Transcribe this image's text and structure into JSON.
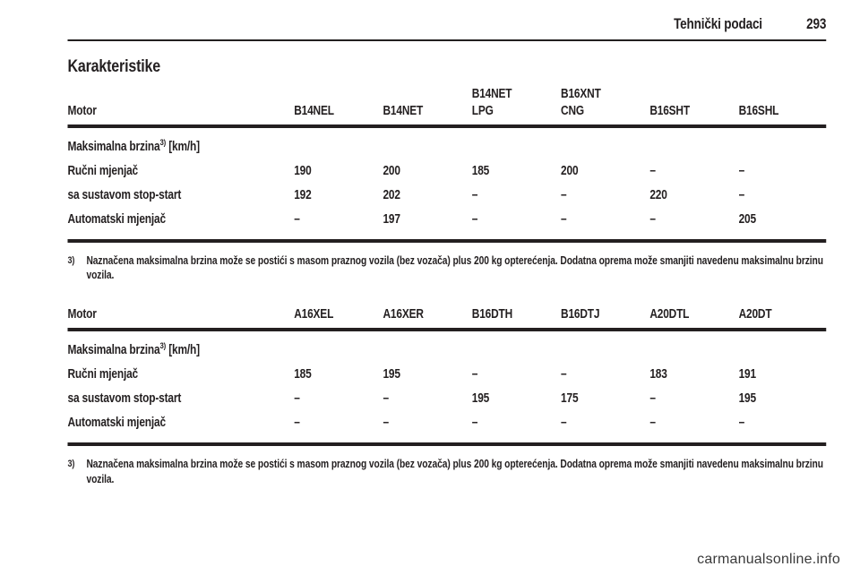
{
  "header": {
    "title": "Tehnički podaci",
    "page_number": "293"
  },
  "title": "Karakteristike",
  "footnote": {
    "marker": "3)",
    "text": "Naznačena maksimalna brzina može se postići s masom praznog vozila (bez vozača) plus 200 kg opterećenja. Dodatna oprema može smanjiti navedenu maksimalnu brzinu vozila."
  },
  "table1": {
    "motor_label": "Motor",
    "columns": [
      "B14NEL",
      "B14NET",
      "B14NET\nLPG",
      "B16XNT\nCNG",
      "B16SHT",
      "B16SHL"
    ],
    "section": {
      "label": "Maksimalna brzina",
      "sup": "3)",
      "unit": " [km/h]"
    },
    "rows": [
      {
        "label": "Ručni mjenjač",
        "values": [
          "190",
          "200",
          "185",
          "200",
          "–",
          "–"
        ]
      },
      {
        "label": "sa sustavom stop-start",
        "values": [
          "192",
          "202",
          "–",
          "–",
          "220",
          "–"
        ]
      },
      {
        "label": "Automatski mjenjač",
        "values": [
          "–",
          "197",
          "–",
          "–",
          "–",
          "205"
        ]
      }
    ]
  },
  "table2": {
    "motor_label": "Motor",
    "columns": [
      "A16XEL",
      "A16XER",
      "B16DTH",
      "B16DTJ",
      "A20DTL",
      "A20DT"
    ],
    "section": {
      "label": "Maksimalna brzina",
      "sup": "3)",
      "unit": " [km/h]"
    },
    "rows": [
      {
        "label": "Ručni mjenjač",
        "values": [
          "185",
          "195",
          "–",
          "–",
          "183",
          "191"
        ]
      },
      {
        "label": "sa sustavom stop-start",
        "values": [
          "–",
          "–",
          "195",
          "175",
          "–",
          "195"
        ]
      },
      {
        "label": "Automatski mjenjač",
        "values": [
          "–",
          "–",
          "–",
          "–",
          "–",
          "–"
        ]
      }
    ]
  },
  "watermark": "carmanualsonline.info"
}
